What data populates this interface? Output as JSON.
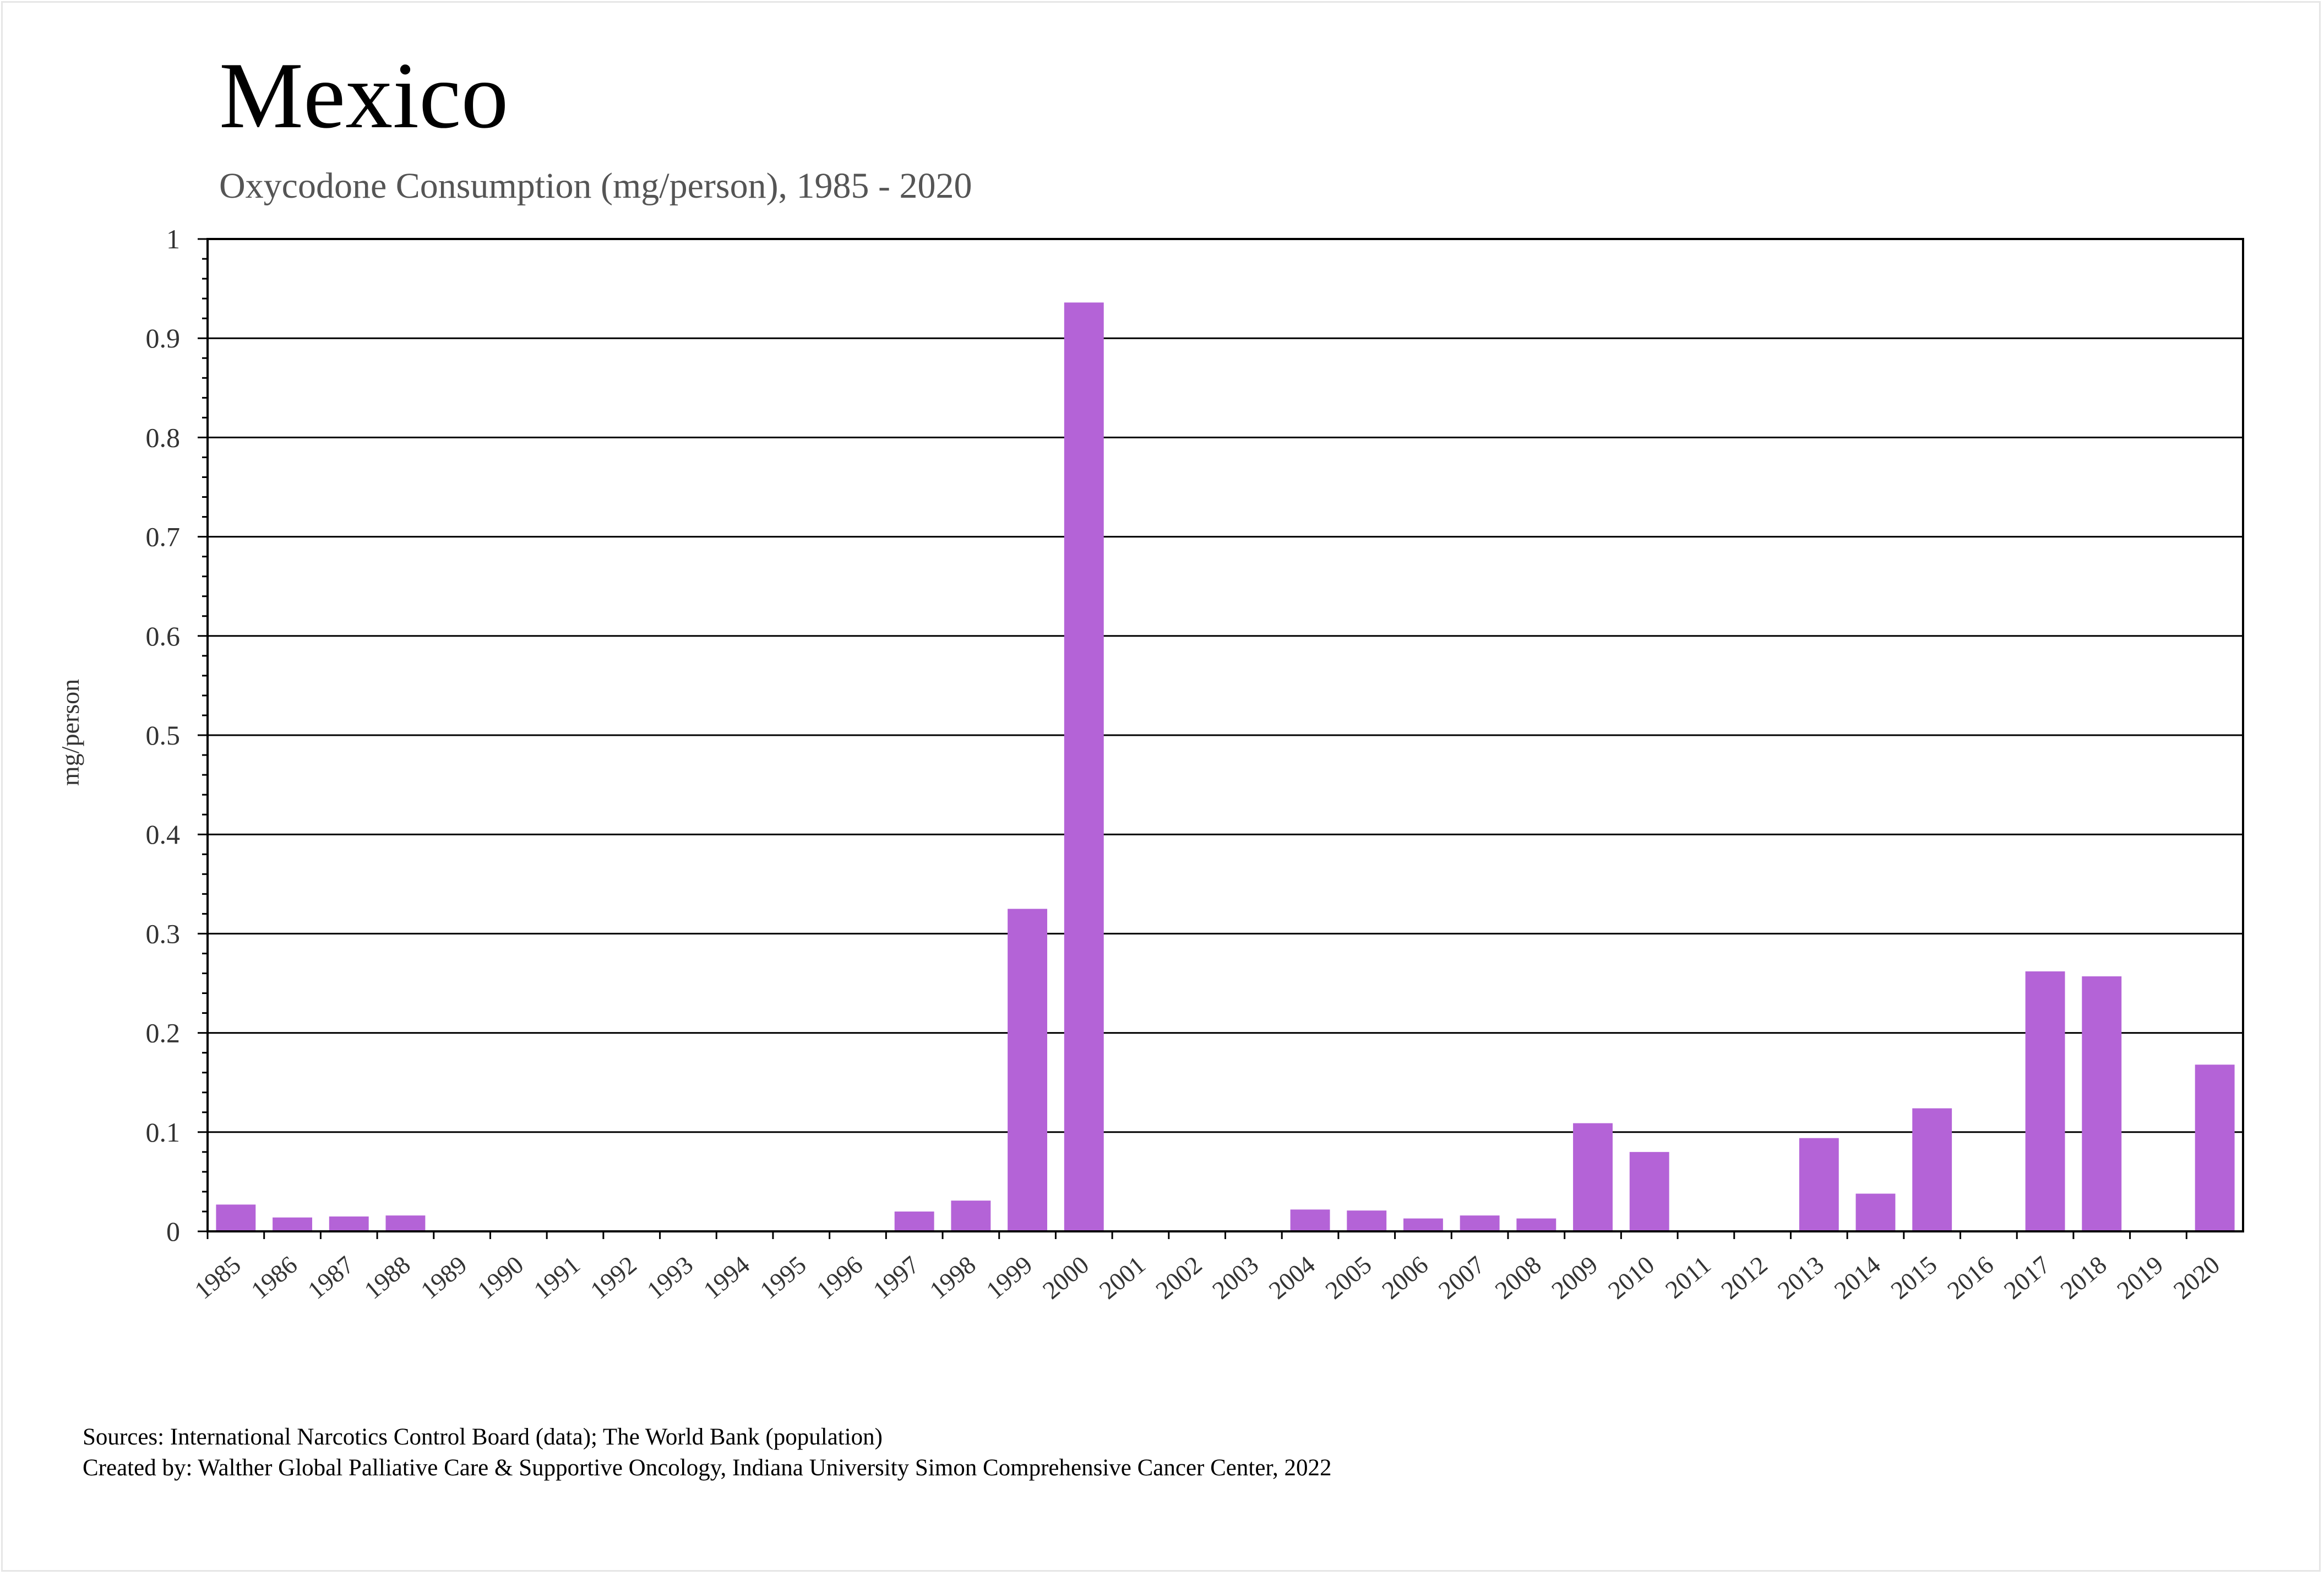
{
  "chart_data": {
    "type": "bar",
    "title": "Mexico",
    "subtitle": "Oxycodone Consumption (mg/person), 1985 - 2020",
    "xlabel": "",
    "ylabel": "mg/person",
    "ylim": [
      0,
      1
    ],
    "yticks": [
      "0",
      "0.1",
      "0.2",
      "0.3",
      "0.4",
      "0.5",
      "0.6",
      "0.7",
      "0.8",
      "0.9",
      "1"
    ],
    "grid": true,
    "bar_color": "#b463d7",
    "categories": [
      "1985",
      "1986",
      "1987",
      "1988",
      "1989",
      "1990",
      "1991",
      "1992",
      "1993",
      "1994",
      "1995",
      "1996",
      "1997",
      "1998",
      "1999",
      "2000",
      "2001",
      "2002",
      "2003",
      "2004",
      "2005",
      "2006",
      "2007",
      "2008",
      "2009",
      "2010",
      "2011",
      "2012",
      "2013",
      "2014",
      "2015",
      "2016",
      "2017",
      "2018",
      "2019",
      "2020"
    ],
    "values": [
      0.027,
      0.014,
      0.015,
      0.016,
      0,
      0,
      0,
      0,
      0,
      0,
      0,
      0,
      0.02,
      0.031,
      0.325,
      0.936,
      0,
      0,
      0,
      0.022,
      0.021,
      0.013,
      0.016,
      0.013,
      0.109,
      0.08,
      0,
      0.001,
      0.094,
      0.038,
      0.124,
      0,
      0.262,
      0.257,
      0,
      0.168
    ]
  },
  "footer": {
    "sources": "Sources: International Narcotics Control Board (data); The World Bank (population)",
    "created_by": "Created by: Walther Global Palliative Care & Supportive Oncology, Indiana University Simon Comprehensive Cancer Center, 2022"
  }
}
